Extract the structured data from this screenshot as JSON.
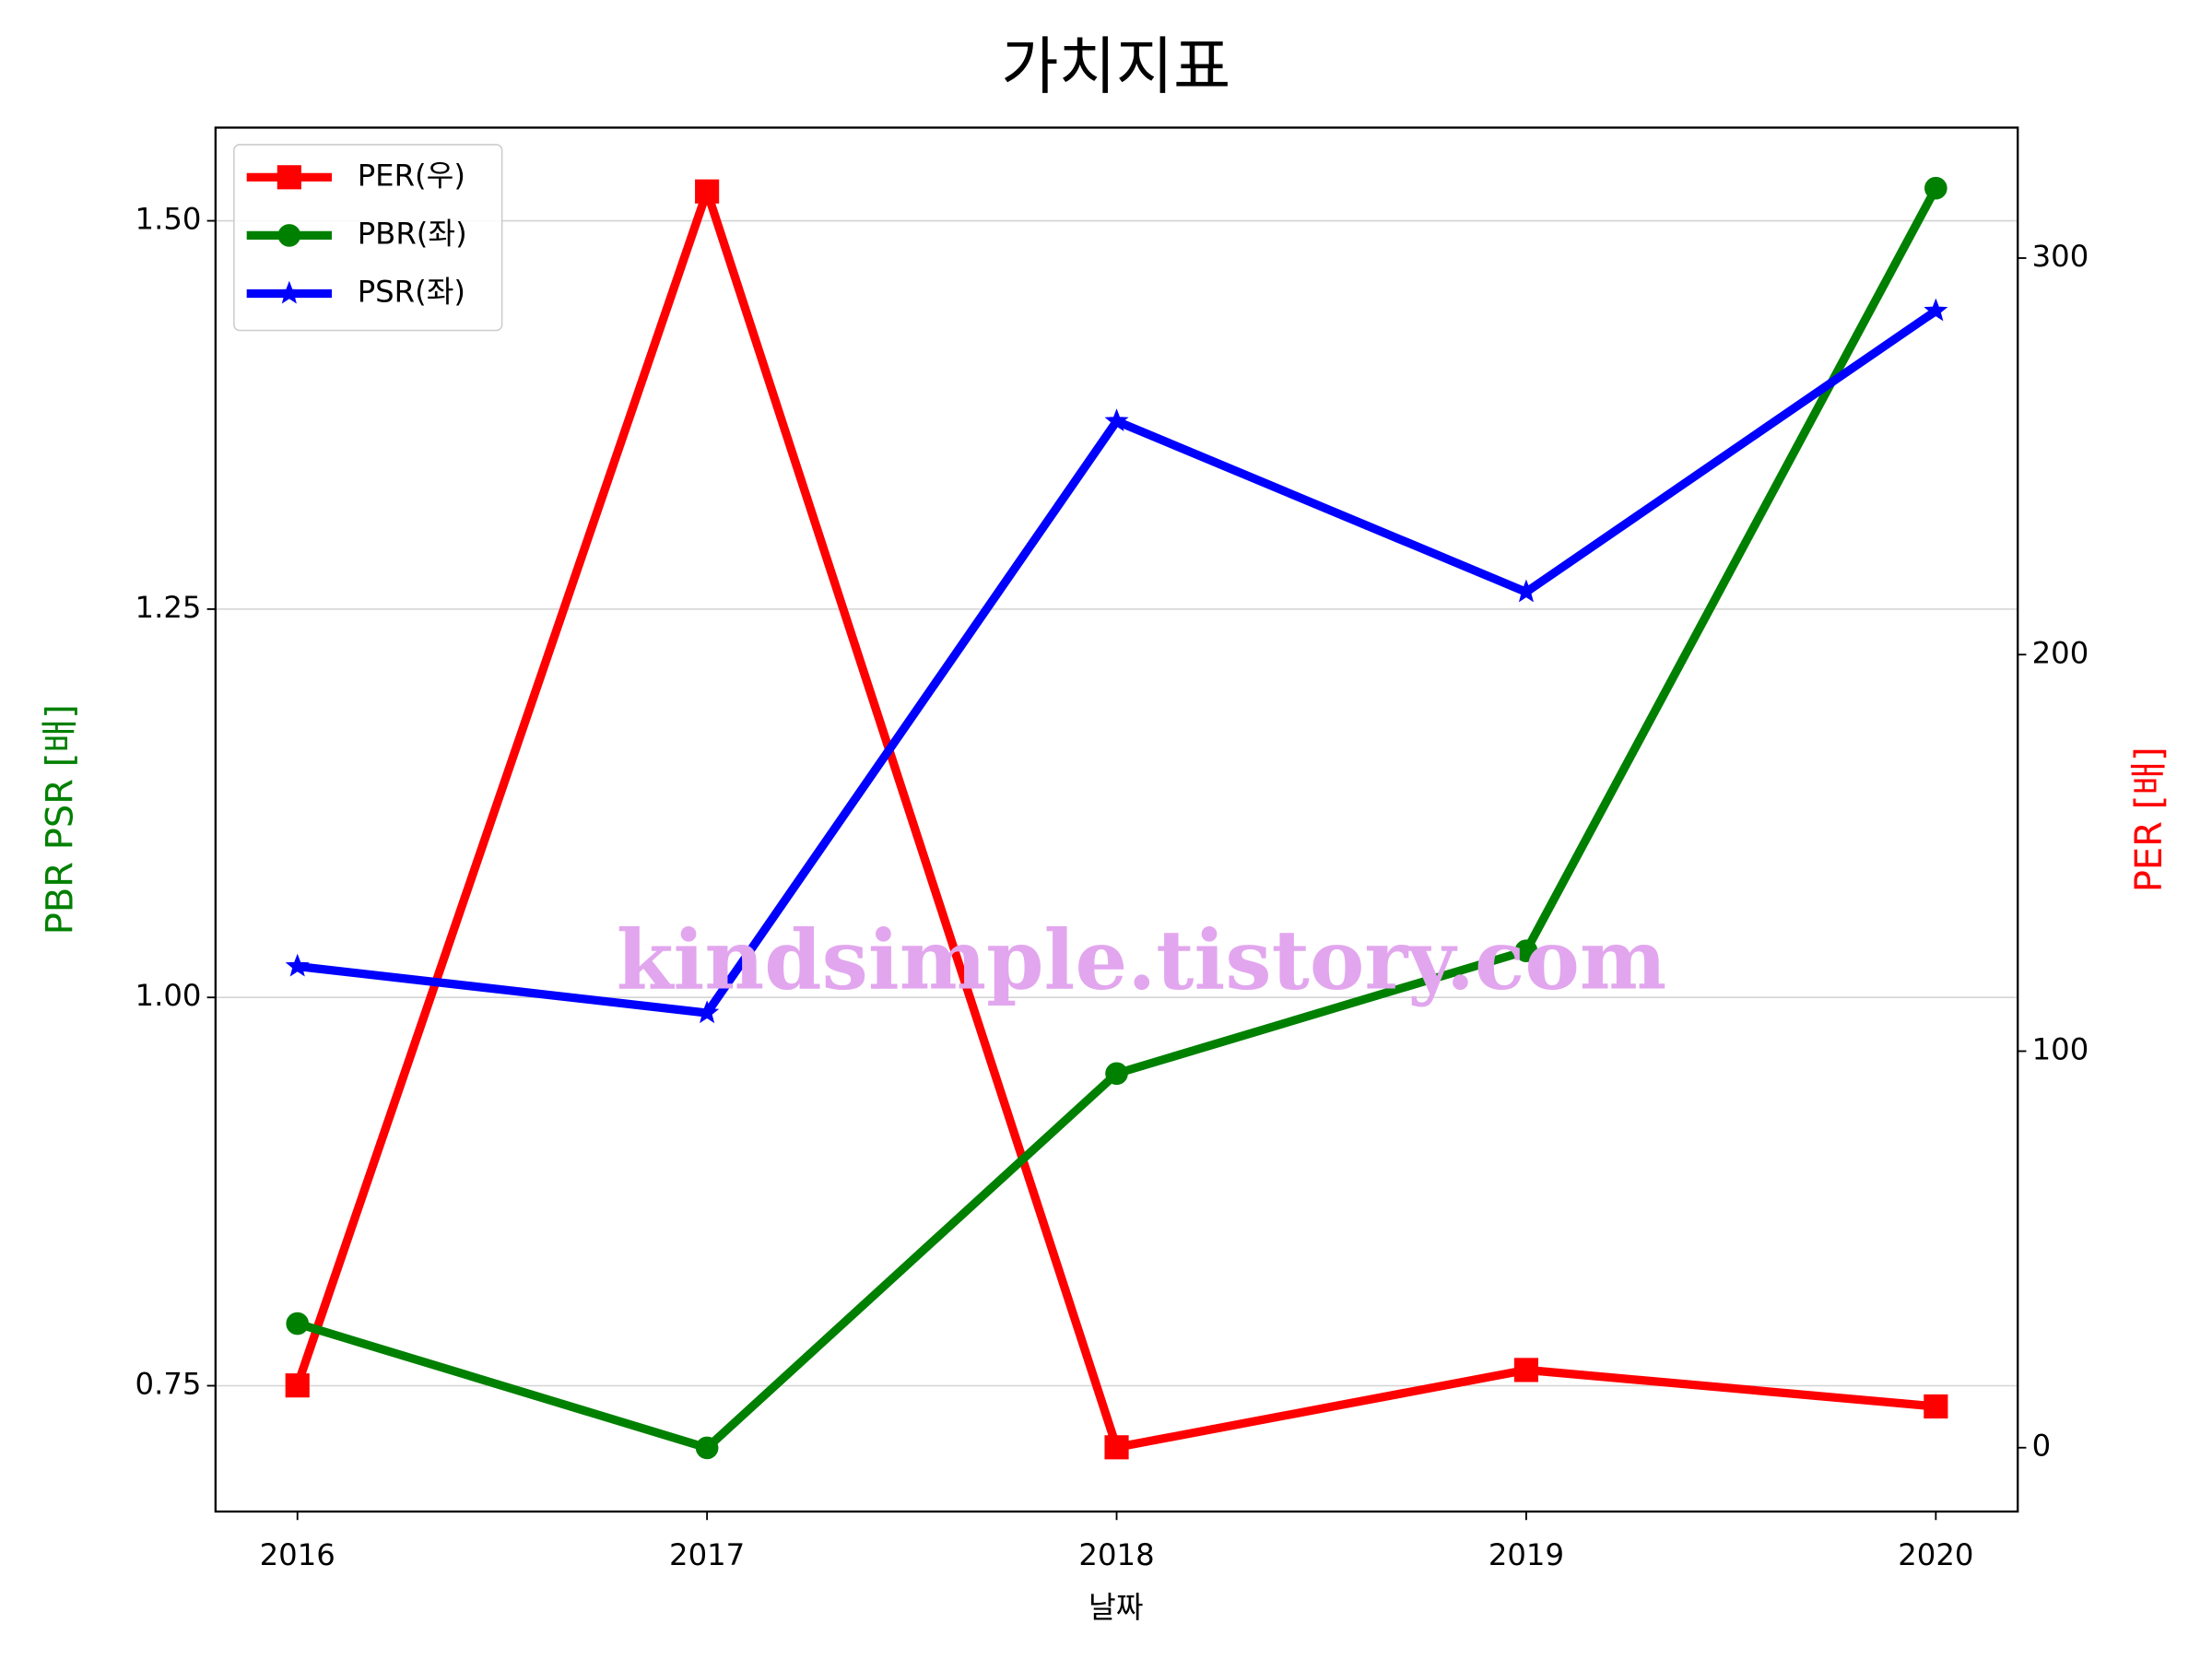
{
  "chart_data": {
    "type": "line",
    "title": "가치지표",
    "xlabel": "날짜",
    "ylabel": "PBR PSR [배]",
    "y2label": "PER [배]",
    "watermark": "kindsimple.tistory.com",
    "x": [
      2016,
      2017,
      2018,
      2019,
      2020
    ],
    "xlim": [
      2015.8,
      2020.2
    ],
    "xticks": [
      2016,
      2017,
      2018,
      2019,
      2020
    ],
    "ylim": [
      0.669,
      1.56
    ],
    "yticks": [
      {
        "value": 0.75,
        "label": "0.75"
      },
      {
        "value": 1.0,
        "label": "1.00"
      },
      1.25,
      {
        "value": 1.5,
        "label": "1.50"
      }
    ],
    "y2lim": [
      -16.1,
      332.9
    ],
    "y2ticks": [
      0,
      100,
      200,
      300
    ],
    "grid": true,
    "legend": "upper left",
    "series": [
      {
        "name": "PER(우)",
        "color": "#ff0000",
        "marker": "square",
        "axis": "y2",
        "values": [
          15.7,
          316.8,
          0.1,
          19.6,
          10.4
        ]
      },
      {
        "name": "PBR(좌)",
        "color": "#008000",
        "marker": "circle",
        "values": [
          0.79,
          0.71,
          0.951,
          1.03,
          1.521
        ]
      },
      {
        "name": "PSR(좌)",
        "color": "#0000ff",
        "marker": "star",
        "values": [
          1.02,
          0.99,
          1.371,
          1.261,
          1.442
        ]
      }
    ]
  }
}
